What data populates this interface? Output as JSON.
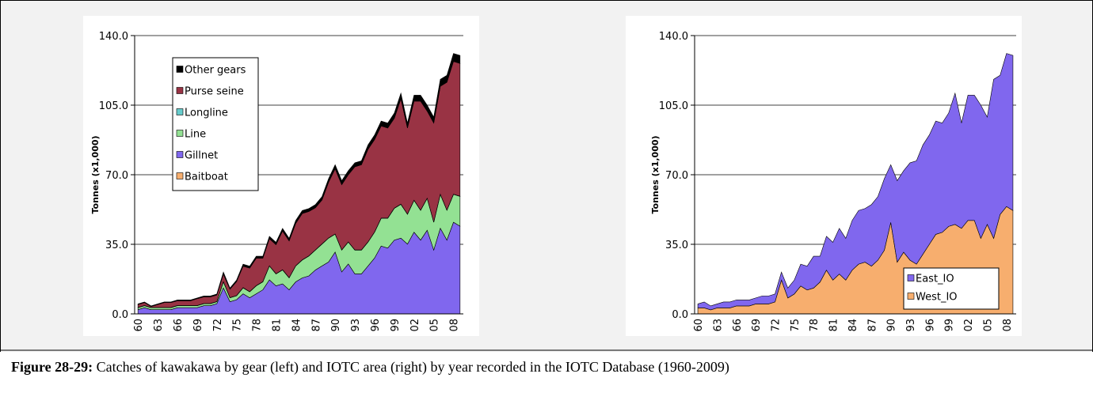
{
  "chart_data": [
    {
      "type": "stacked_area",
      "ylabel": "Tonnes (x1,000)",
      "categories": [
        "60",
        null,
        null,
        "63",
        null,
        null,
        "66",
        null,
        null,
        "69",
        null,
        null,
        "72",
        null,
        null,
        "75",
        null,
        null,
        "78",
        null,
        null,
        "81",
        null,
        null,
        "84",
        null,
        null,
        "87",
        null,
        null,
        "90",
        null,
        null,
        "93",
        null,
        null,
        "96",
        null,
        null,
        "99",
        null,
        null,
        "02",
        null,
        null,
        "05",
        null,
        null,
        "08",
        null
      ],
      "series": [
        {
          "name": "Baitboat",
          "color": "#f7ae6e",
          "values": [
            0.1,
            0.1,
            0.1,
            0.1,
            0.1,
            0.1,
            0.1,
            0.1,
            0.1,
            0.1,
            0.1,
            0.1,
            0.1,
            0.1,
            0.1,
            0.1,
            0.1,
            0.1,
            0.1,
            0.1,
            0.1,
            0.1,
            0.1,
            0.1,
            0.1,
            0.1,
            0.1,
            0.1,
            0.1,
            0.1,
            0.1,
            0.1,
            0.1,
            0.1,
            0.1,
            0.1,
            0.1,
            0.1,
            0.1,
            0.1,
            0.1,
            0.1,
            0.1,
            0.1,
            0.1,
            0.1,
            0.1,
            0.1,
            0.1,
            0.1
          ]
        },
        {
          "name": "Gillnet",
          "color": "#8067ee",
          "values": [
            2,
            3,
            2,
            2,
            2,
            2,
            3,
            3,
            3,
            3,
            4,
            4,
            5,
            13,
            6,
            7,
            10,
            8,
            10,
            12,
            17,
            14,
            15,
            12,
            16,
            18,
            19,
            22,
            24,
            26,
            31,
            21,
            25,
            20,
            20,
            24,
            28,
            34,
            33,
            37,
            38,
            35,
            41,
            37,
            42,
            32,
            43,
            37,
            46,
            44
          ]
        },
        {
          "name": "Line",
          "color": "#93e193",
          "values": [
            1,
            1,
            1,
            1,
            1,
            1,
            1,
            1,
            1,
            1,
            1,
            1,
            1,
            3,
            2,
            2,
            3,
            3,
            4,
            4,
            7,
            6,
            7,
            6,
            8,
            9,
            10,
            10,
            11,
            12,
            9,
            11,
            11,
            12,
            12,
            12,
            13,
            14,
            15,
            16,
            17,
            15,
            16,
            15,
            16,
            14,
            17,
            15,
            14,
            15
          ]
        },
        {
          "name": "Longline",
          "color": "#66cccc",
          "values": [
            0.1,
            0.1,
            0.1,
            0.1,
            0.1,
            0.1,
            0.1,
            0.1,
            0.1,
            0.1,
            0.1,
            0.1,
            0.1,
            0.1,
            0.1,
            0.1,
            0.1,
            0.1,
            0.1,
            0.1,
            0.1,
            0.1,
            0.1,
            0.1,
            0.1,
            0.1,
            0.1,
            0.1,
            0.1,
            0.1,
            0.1,
            0.1,
            0.1,
            0.1,
            0.1,
            0.1,
            0.1,
            0.1,
            0.1,
            0.1,
            0.1,
            0.1,
            0.1,
            0.1,
            0.1,
            0.1,
            0.1,
            0.1,
            0.1,
            0.1
          ]
        },
        {
          "name": "Purse seine",
          "color": "#993344",
          "values": [
            1.5,
            1.5,
            0.5,
            1.5,
            2.5,
            2.5,
            2.4,
            2.4,
            2.4,
            3.4,
            3.3,
            3.3,
            3.3,
            3.8,
            4.2,
            7,
            10.8,
            11.8,
            13.8,
            11.8,
            13.6,
            14.6,
            19.5,
            18.5,
            21.3,
            23.3,
            22.3,
            21.2,
            22.1,
            28,
            32.8,
            32.8,
            33.8,
            41.8,
            42.8,
            46.6,
            46.5,
            46.3,
            45.3,
            45.2,
            53,
            43.3,
            49.8,
            54.8,
            43.8,
            49.8,
            54.3,
            64.3,
            66.8,
            66.8
          ]
        },
        {
          "name": "Other gears",
          "color": "#000000",
          "values": [
            0.3,
            0.3,
            0.3,
            0.3,
            0.3,
            0.3,
            0.4,
            0.4,
            0.4,
            0.4,
            0.5,
            0.5,
            0.5,
            1,
            0.6,
            0.8,
            1,
            1,
            1,
            1,
            1.2,
            1.2,
            1.3,
            1.3,
            1.5,
            1.5,
            1.5,
            1.6,
            1.7,
            1.8,
            2,
            2,
            2,
            2,
            2,
            2.2,
            2.3,
            2.5,
            2.5,
            2.6,
            2.8,
            2.5,
            3,
            3,
            3,
            3,
            3.5,
            3.5,
            4,
            4
          ]
        }
      ],
      "ylim": [
        0,
        140
      ],
      "yticks": [
        {
          "value": 0,
          "label": "0.0"
        },
        {
          "value": 35,
          "label": "35.0"
        },
        {
          "value": 70,
          "label": "70.0"
        },
        {
          "value": 105,
          "label": "105.0"
        },
        {
          "value": 140,
          "label": "140.0"
        }
      ],
      "grid": true,
      "legend": "upper left"
    },
    {
      "type": "stacked_area",
      "ylabel": "Tonnes (x1,000)",
      "categories": [
        "60",
        null,
        null,
        "63",
        null,
        null,
        "66",
        null,
        null,
        "69",
        null,
        null,
        "72",
        null,
        null,
        "75",
        null,
        null,
        "78",
        null,
        null,
        "81",
        null,
        null,
        "84",
        null,
        null,
        "87",
        null,
        null,
        "90",
        null,
        null,
        "93",
        null,
        null,
        "96",
        null,
        null,
        "99",
        null,
        null,
        "02",
        null,
        null,
        "05",
        null,
        null,
        "08",
        null
      ],
      "series": [
        {
          "name": "West_IO",
          "color": "#f7ae6e",
          "values": [
            3,
            3,
            2,
            3,
            3,
            3,
            4,
            4,
            4,
            5,
            5,
            5,
            6,
            17,
            8,
            10,
            14,
            12,
            13,
            16,
            22,
            17,
            20,
            17,
            22,
            25,
            26,
            24,
            27,
            32,
            46,
            26,
            31,
            27,
            25,
            30,
            35,
            40,
            41,
            44,
            45,
            43,
            47,
            47,
            38,
            45,
            38,
            50,
            54,
            52
          ]
        },
        {
          "name": "East_IO",
          "color": "#8067ee",
          "values": [
            2,
            3,
            2,
            2,
            3,
            3,
            3,
            3,
            3,
            3,
            4,
            4,
            4,
            4,
            5,
            7,
            11,
            12,
            16,
            13,
            17,
            19,
            23,
            21,
            25,
            27,
            27,
            31,
            32,
            36,
            29,
            41,
            41,
            49,
            52,
            55,
            55,
            57,
            55,
            57,
            66,
            53,
            63,
            63,
            67,
            54,
            80,
            70,
            77,
            78
          ]
        }
      ],
      "ylim": [
        0,
        140
      ],
      "yticks": [
        {
          "value": 0,
          "label": "0.0"
        },
        {
          "value": 35,
          "label": "35.0"
        },
        {
          "value": 70,
          "label": "70.0"
        },
        {
          "value": 105,
          "label": "105.0"
        },
        {
          "value": 140,
          "label": "140.0"
        }
      ],
      "grid": true,
      "legend": "lower right"
    }
  ],
  "caption": {
    "label": "Figure 28-29:",
    "text": "Catches of kawakawa by gear (left) and IOTC area (right) by year recorded in the IOTC Database (1960-2009)"
  }
}
